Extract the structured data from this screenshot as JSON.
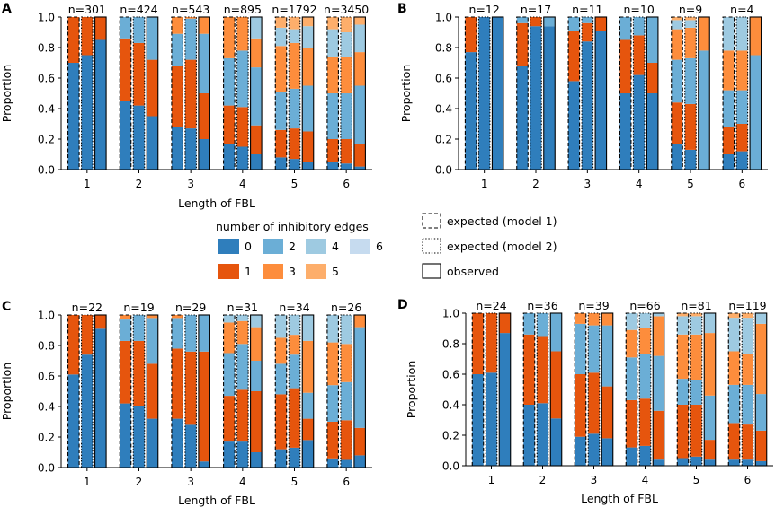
{
  "legend": {
    "title": "number of inhibitory edges",
    "items": [
      {
        "label": "0",
        "color": "#2f7ebc"
      },
      {
        "label": "2",
        "color": "#6baed6"
      },
      {
        "label": "4",
        "color": "#9ecae1"
      },
      {
        "label": "6",
        "color": "#c6dbef"
      },
      {
        "label": "1",
        "color": "#e6550d"
      },
      {
        "label": "3",
        "color": "#fd8d3c"
      },
      {
        "label": "5",
        "color": "#fdae6b"
      }
    ],
    "styles": [
      {
        "label": "expected (model 1)",
        "dash": "dashed"
      },
      {
        "label": "expected (model 2)",
        "dash": "dotted"
      },
      {
        "label": "observed",
        "dash": "solid"
      }
    ]
  },
  "chart_data": [
    {
      "panel": "A",
      "type": "bar",
      "stacked": true,
      "categories": [
        "1",
        "2",
        "3",
        "4",
        "5",
        "6"
      ],
      "xlabel": "Length of FBL",
      "ylabel": "Proportion",
      "ylim": [
        0,
        1
      ],
      "yticks": [
        "0.0",
        "0.2",
        "0.4",
        "0.6",
        "0.8",
        "1.0"
      ],
      "n_labels": [
        "n=301",
        "n=424",
        "n=543",
        "n=895",
        "n=1792",
        "n=3450"
      ],
      "bar_types": [
        "expected (model 1)",
        "expected (model 2)",
        "observed"
      ],
      "stack_order": [
        "0",
        "1",
        "2",
        "3",
        "4",
        "5",
        "6"
      ],
      "stacks": [
        [
          [
            0.7,
            0.3
          ],
          [
            0.75,
            0.25
          ],
          [
            0.85,
            0.15
          ]
        ],
        [
          [
            0.45,
            0.41,
            0.14
          ],
          [
            0.42,
            0.41,
            0.17
          ],
          [
            0.35,
            0.37,
            0.28
          ]
        ],
        [
          [
            0.28,
            0.4,
            0.21,
            0.11
          ],
          [
            0.27,
            0.45,
            0.27,
            0.01
          ],
          [
            0.2,
            0.3,
            0.39,
            0.11
          ]
        ],
        [
          [
            0.17,
            0.25,
            0.31,
            0.27
          ],
          [
            0.15,
            0.26,
            0.37,
            0.22
          ],
          [
            0.1,
            0.19,
            0.38,
            0.19,
            0.14
          ]
        ],
        [
          [
            0.08,
            0.18,
            0.25,
            0.3,
            0.12,
            0.07
          ],
          [
            0.07,
            0.2,
            0.26,
            0.3,
            0.09,
            0.08
          ],
          [
            0.05,
            0.2,
            0.3,
            0.25,
            0.14,
            0.06
          ]
        ],
        [
          [
            0.05,
            0.15,
            0.3,
            0.24,
            0.18,
            0.08
          ],
          [
            0.04,
            0.16,
            0.3,
            0.24,
            0.16,
            0.1
          ],
          [
            0.02,
            0.15,
            0.38,
            0.22,
            0.18,
            0.05
          ]
        ]
      ]
    },
    {
      "panel": "B",
      "type": "bar",
      "stacked": true,
      "categories": [
        "1",
        "2",
        "3",
        "4",
        "5",
        "6"
      ],
      "xlabel": "",
      "ylabel": "Proportion",
      "ylim": [
        0,
        1
      ],
      "yticks": [
        "0.0",
        "0.2",
        "0.4",
        "0.6",
        "0.8",
        "1.0"
      ],
      "n_labels": [
        "n=12",
        "n=17",
        "n=11",
        "n=10",
        "n=9",
        "n=4"
      ],
      "bar_types": [
        "expected (model 1)",
        "expected (model 2)",
        "observed"
      ],
      "stack_order": [
        "0",
        "1",
        "2",
        "3",
        "4",
        "5",
        "6"
      ],
      "stacks": [
        [
          [
            0.77,
            0.23
          ],
          [
            1.0,
            0.0
          ],
          [
            1.0,
            0.0
          ]
        ],
        [
          [
            0.68,
            0.28,
            0.04
          ],
          [
            0.94,
            0.06,
            0.0
          ],
          [
            0.94,
            0.0,
            0.06
          ]
        ],
        [
          [
            0.58,
            0.33,
            0.09
          ],
          [
            0.84,
            0.12,
            0.04
          ],
          [
            0.91,
            0.09,
            0.0
          ]
        ],
        [
          [
            0.5,
            0.35,
            0.15
          ],
          [
            0.62,
            0.26,
            0.12
          ],
          [
            0.5,
            0.2,
            0.3
          ]
        ],
        [
          [
            0.17,
            0.27,
            0.28,
            0.2,
            0.06,
            0.02
          ],
          [
            0.13,
            0.3,
            0.3,
            0.2,
            0.05,
            0.02
          ],
          [
            0.0,
            0.0,
            0.78,
            0.22,
            0.0,
            0.0
          ]
        ],
        [
          [
            0.1,
            0.18,
            0.24,
            0.26,
            0.22
          ],
          [
            0.12,
            0.18,
            0.22,
            0.26,
            0.22
          ],
          [
            0.0,
            0.0,
            0.75,
            0.25,
            0.0
          ]
        ]
      ]
    },
    {
      "panel": "C",
      "type": "bar",
      "stacked": true,
      "categories": [
        "1",
        "2",
        "3",
        "4",
        "5",
        "6"
      ],
      "xlabel": "Length of FBL",
      "ylabel": "Proportion",
      "ylim": [
        0,
        1
      ],
      "yticks": [
        "0.0",
        "0.2",
        "0.4",
        "0.6",
        "0.8",
        "1.0"
      ],
      "n_labels": [
        "n=22",
        "n=19",
        "n=29",
        "n=31",
        "n=34",
        "n=26"
      ],
      "bar_types": [
        "expected (model 1)",
        "expected (model 2)",
        "observed"
      ],
      "stack_order": [
        "0",
        "1",
        "2",
        "3",
        "4",
        "5",
        "6"
      ],
      "stacks": [
        [
          [
            0.61,
            0.39
          ],
          [
            0.74,
            0.26
          ],
          [
            0.91,
            0.09
          ]
        ],
        [
          [
            0.42,
            0.41,
            0.14,
            0.03
          ],
          [
            0.4,
            0.43,
            0.17
          ],
          [
            0.32,
            0.36,
            0.3,
            0.02
          ]
        ],
        [
          [
            0.32,
            0.46,
            0.2,
            0.02
          ],
          [
            0.28,
            0.48,
            0.24
          ],
          [
            0.04,
            0.72,
            0.24
          ]
        ],
        [
          [
            0.17,
            0.3,
            0.28,
            0.2,
            0.05
          ],
          [
            0.17,
            0.34,
            0.3,
            0.15,
            0.04
          ],
          [
            0.1,
            0.4,
            0.2,
            0.22,
            0.08
          ]
        ],
        [
          [
            0.12,
            0.36,
            0.2,
            0.17,
            0.15
          ],
          [
            0.13,
            0.39,
            0.22,
            0.13,
            0.13
          ],
          [
            0.18,
            0.14,
            0.17,
            0.34,
            0.17
          ]
        ],
        [
          [
            0.06,
            0.24,
            0.24,
            0.28,
            0.18
          ],
          [
            0.05,
            0.26,
            0.25,
            0.25,
            0.19
          ],
          [
            0.08,
            0.18,
            0.66,
            0.08
          ]
        ]
      ]
    },
    {
      "panel": "D",
      "type": "bar",
      "stacked": true,
      "categories": [
        "1",
        "2",
        "3",
        "4",
        "5",
        "6"
      ],
      "xlabel": "Length of FBL",
      "ylabel": "Proportion",
      "ylim": [
        0,
        1
      ],
      "yticks": [
        "0.0",
        "0.2",
        "0.4",
        "0.6",
        "0.8",
        "1.0"
      ],
      "n_labels": [
        "n=24",
        "n=36",
        "n=39",
        "n=66",
        "n=81",
        "n=119"
      ],
      "bar_types": [
        "expected (model 1)",
        "expected (model 2)",
        "observed"
      ],
      "stack_order": [
        "0",
        "1",
        "2",
        "3",
        "4",
        "5",
        "6"
      ],
      "stacks": [
        [
          [
            0.6,
            0.4
          ],
          [
            0.61,
            0.39
          ],
          [
            0.87,
            0.13
          ]
        ],
        [
          [
            0.4,
            0.46,
            0.14
          ],
          [
            0.41,
            0.44,
            0.15
          ],
          [
            0.31,
            0.44,
            0.25
          ]
        ],
        [
          [
            0.19,
            0.41,
            0.33,
            0.07
          ],
          [
            0.21,
            0.4,
            0.31,
            0.08
          ],
          [
            0.18,
            0.34,
            0.4,
            0.08
          ]
        ],
        [
          [
            0.12,
            0.31,
            0.28,
            0.18,
            0.11
          ],
          [
            0.13,
            0.31,
            0.29,
            0.17,
            0.1
          ],
          [
            0.04,
            0.32,
            0.36,
            0.26,
            0.02
          ]
        ],
        [
          [
            0.05,
            0.35,
            0.17,
            0.29,
            0.12,
            0.02
          ],
          [
            0.06,
            0.34,
            0.16,
            0.3,
            0.12,
            0.02
          ],
          [
            0.04,
            0.13,
            0.29,
            0.41,
            0.13,
            0.0
          ]
        ],
        [
          [
            0.04,
            0.24,
            0.25,
            0.22,
            0.22,
            0.03
          ],
          [
            0.04,
            0.23,
            0.26,
            0.2,
            0.24,
            0.03
          ],
          [
            0.03,
            0.2,
            0.24,
            0.46,
            0.07,
            0.0
          ]
        ]
      ]
    }
  ]
}
